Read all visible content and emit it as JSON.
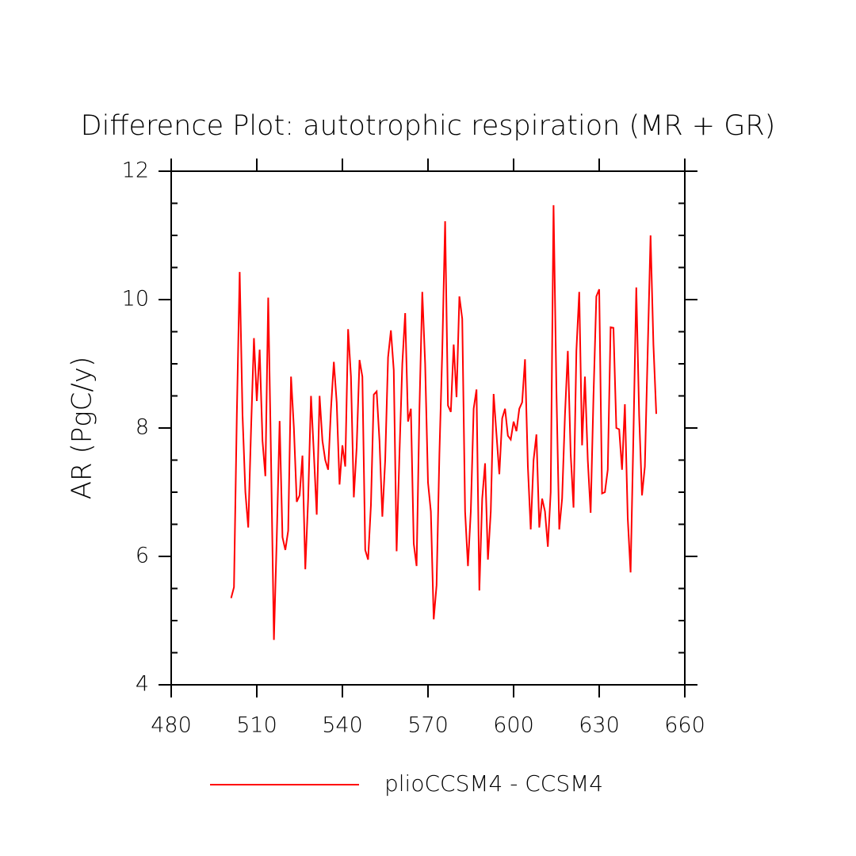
{
  "chart_data": {
    "type": "line",
    "title": "Difference Plot: autotrophic respiration (MR + GR)",
    "y_label": "AR  (PgC/y)",
    "x": [
      501,
      502,
      503,
      504,
      505,
      506,
      507,
      508,
      509,
      510,
      511,
      512,
      513,
      514,
      515,
      516,
      517,
      518,
      519,
      520,
      521,
      522,
      523,
      524,
      525,
      526,
      527,
      528,
      529,
      530,
      531,
      532,
      533,
      534,
      535,
      536,
      537,
      538,
      539,
      540,
      541,
      542,
      543,
      544,
      545,
      546,
      547,
      548,
      549,
      550,
      551,
      552,
      553,
      554,
      555,
      556,
      557,
      558,
      559,
      560,
      561,
      562,
      563,
      564,
      565,
      566,
      567,
      568,
      569,
      570,
      571,
      572,
      573,
      574,
      575,
      576,
      577,
      578,
      579,
      580,
      581,
      582,
      583,
      584,
      585,
      586,
      587,
      588,
      589,
      590,
      591,
      592,
      593,
      594,
      595,
      596,
      597,
      598,
      599,
      600,
      601,
      602,
      603,
      604,
      605,
      606,
      607,
      608,
      609,
      610,
      611,
      612,
      613,
      614,
      615,
      616,
      617,
      618,
      619,
      620,
      621,
      622,
      623,
      624,
      625,
      626,
      627,
      628,
      629,
      630,
      631,
      632,
      633,
      634,
      635,
      636,
      637,
      638,
      639,
      640,
      641,
      642,
      643,
      644,
      645,
      646,
      647,
      648,
      649,
      650
    ],
    "series": [
      {
        "name": "plioCCSM4 - CCSM4",
        "color": "#ff0000",
        "values": [
          5.35,
          5.52,
          8.2,
          10.43,
          8.2,
          7.0,
          6.45,
          8.0,
          9.4,
          8.42,
          9.22,
          7.8,
          7.25,
          10.03,
          7.5,
          4.7,
          6.3,
          8.11,
          6.3,
          6.1,
          6.4,
          8.8,
          8.0,
          6.85,
          6.95,
          7.57,
          5.8,
          6.9,
          8.5,
          7.6,
          6.65,
          8.5,
          7.8,
          7.5,
          7.35,
          8.3,
          9.03,
          8.4,
          7.12,
          7.73,
          7.4,
          9.54,
          8.8,
          6.92,
          7.7,
          9.06,
          8.8,
          6.1,
          5.95,
          6.8,
          8.52,
          8.57,
          7.8,
          6.62,
          7.5,
          9.1,
          9.52,
          8.9,
          6.08,
          7.6,
          9.0,
          9.79,
          8.1,
          8.3,
          6.2,
          5.85,
          8.3,
          10.12,
          9.0,
          7.15,
          6.7,
          5.02,
          5.55,
          7.6,
          9.2,
          11.22,
          8.35,
          8.25,
          9.3,
          8.48,
          10.05,
          9.7,
          6.7,
          5.85,
          6.7,
          8.3,
          8.6,
          5.47,
          6.9,
          7.45,
          5.95,
          6.7,
          8.53,
          7.9,
          7.28,
          8.15,
          8.3,
          7.88,
          7.82,
          8.1,
          7.95,
          8.3,
          8.4,
          9.07,
          7.4,
          6.42,
          7.5,
          7.9,
          6.45,
          6.9,
          6.7,
          6.15,
          7.0,
          11.47,
          8.6,
          6.42,
          6.9,
          8.2,
          9.2,
          7.6,
          6.76,
          9.2,
          10.12,
          7.73,
          8.8,
          7.5,
          6.68,
          8.5,
          10.05,
          10.16,
          6.98,
          7.0,
          7.35,
          9.57,
          9.56,
          8.0,
          7.98,
          7.35,
          8.37,
          6.6,
          5.75,
          7.9,
          10.19,
          8.2,
          6.95,
          7.4,
          9.2,
          11.0,
          9.3,
          8.22
        ]
      }
    ],
    "xlim": [
      480,
      660
    ],
    "xticks": [
      480,
      510,
      540,
      570,
      600,
      630,
      660
    ],
    "ylim": [
      4,
      12
    ],
    "yticks": [
      4,
      6,
      8,
      10,
      12
    ],
    "grid": false
  }
}
